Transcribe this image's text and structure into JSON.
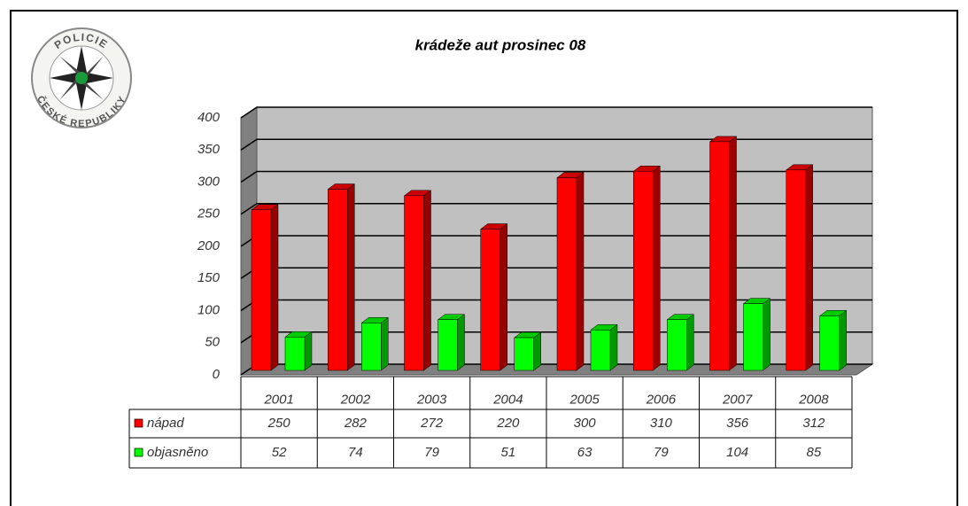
{
  "logo": {
    "top": "POLICIE",
    "bottom": "ČESKÉ REPUBLIKY"
  },
  "chart_data": {
    "type": "bar",
    "title": "krádeže aut  prosinec 08",
    "categories": [
      "2001",
      "2002",
      "2003",
      "2004",
      "2005",
      "2006",
      "2007",
      "2008"
    ],
    "series": [
      {
        "name": "nápad",
        "color": "#ff0000",
        "values": [
          250,
          282,
          272,
          220,
          300,
          310,
          356,
          312
        ]
      },
      {
        "name": "objasněno",
        "color": "#00ff00",
        "values": [
          52,
          74,
          79,
          51,
          63,
          79,
          104,
          85
        ]
      }
    ],
    "ylim": [
      0,
      400
    ],
    "yticks": [
      0,
      50,
      100,
      150,
      200,
      250,
      300,
      350,
      400
    ],
    "grid": true
  }
}
